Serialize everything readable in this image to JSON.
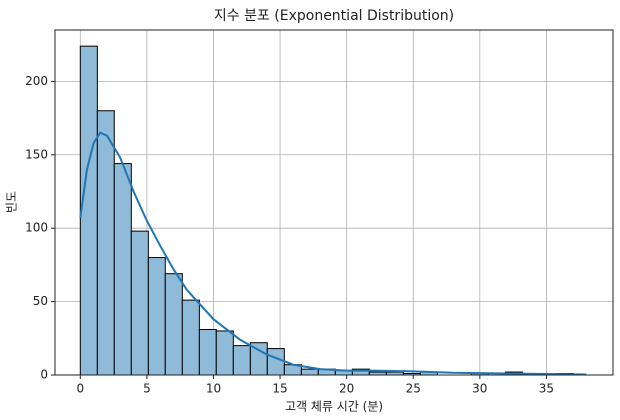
{
  "chart_data": {
    "type": "histogram",
    "title": "지수 분포 (Exponential Distribution)",
    "x_label": "고객 체류 시간 (분)",
    "y_label": "빈도",
    "bins": [
      0,
      1.28,
      2.55,
      3.83,
      5.11,
      6.38,
      7.66,
      8.94,
      10.21,
      11.49,
      12.77,
      14.04,
      15.32,
      16.6,
      17.87,
      19.15,
      20.43,
      21.7,
      22.98,
      24.26,
      25.53,
      26.81,
      28.09,
      29.36,
      30.64,
      31.92,
      33.19,
      34.47,
      35.75,
      37.02,
      38.3
    ],
    "counts": [
      224,
      180,
      144,
      98,
      80,
      69,
      51,
      31,
      30,
      20,
      22,
      18,
      7,
      4,
      4,
      3,
      4,
      2,
      2,
      1,
      2,
      0,
      0,
      1,
      0,
      2,
      0,
      0,
      1,
      0
    ],
    "color": "#8fbbd9",
    "edge_color": "#000000",
    "kde_line": {
      "color": "#1f77b4",
      "x": [
        0,
        0.5,
        1,
        1.5,
        2,
        3,
        4,
        5,
        6,
        7,
        8,
        10,
        12,
        14,
        16,
        18,
        20,
        22,
        25,
        28,
        32,
        35,
        38
      ],
      "values": [
        107,
        140,
        158,
        165,
        163,
        148,
        125,
        105,
        88,
        72,
        58,
        38,
        24,
        14,
        7,
        4,
        3,
        3,
        2.5,
        1.5,
        1,
        0.7,
        0.3
      ]
    },
    "xlim": [
      -1.9,
      40
    ],
    "ylim": [
      0,
      235
    ],
    "xticks": [
      0,
      5,
      10,
      15,
      20,
      25,
      30,
      35
    ],
    "yticks": [
      0,
      50,
      100,
      150,
      200
    ],
    "grid": true
  }
}
